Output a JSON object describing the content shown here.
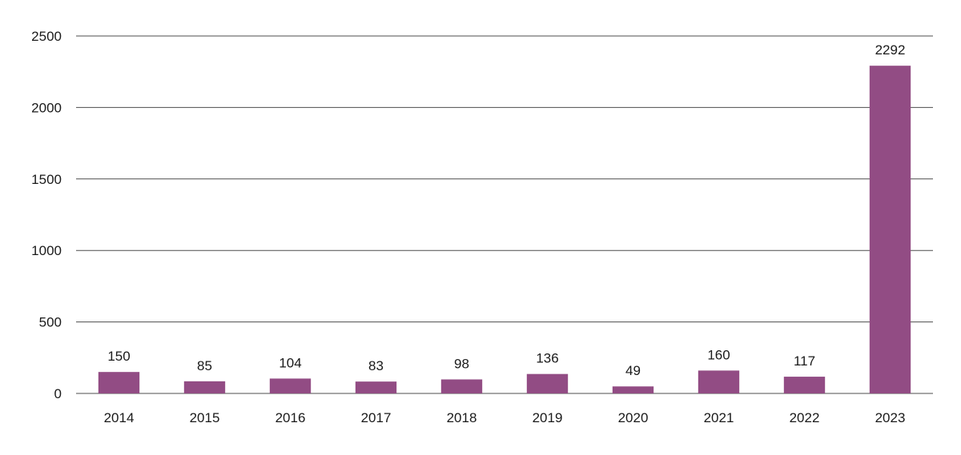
{
  "chart_data": {
    "type": "bar",
    "categories": [
      "2014",
      "2015",
      "2016",
      "2017",
      "2018",
      "2019",
      "2020",
      "2021",
      "2022",
      "2023"
    ],
    "values": [
      150,
      85,
      104,
      83,
      98,
      136,
      49,
      160,
      117,
      2292
    ],
    "data_labels": [
      "150",
      "85",
      "104",
      "83",
      "98",
      "136",
      "49",
      "160",
      "117",
      "2292"
    ],
    "y_ticks": [
      0,
      500,
      1000,
      1500,
      2000,
      2500
    ],
    "y_tick_labels": [
      "0",
      "500",
      "1000",
      "1500",
      "2000",
      "2500"
    ],
    "ylim": [
      0,
      2500
    ],
    "title": "",
    "xlabel": "",
    "ylabel": "",
    "grid": true,
    "legend": "none",
    "bar_color": "#924c84"
  }
}
